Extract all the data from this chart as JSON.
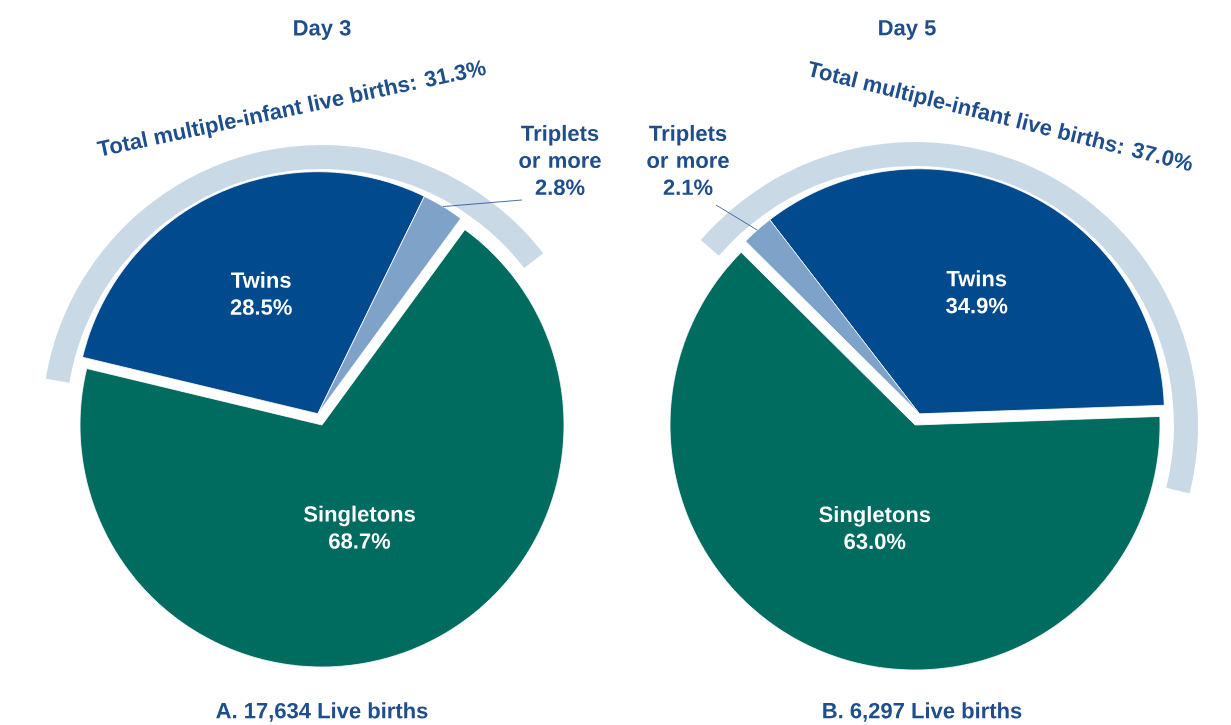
{
  "chart_data": [
    {
      "type": "pie",
      "title": "Day 3",
      "categories": [
        "Singletons",
        "Twins",
        "Triplets or more"
      ],
      "values": [
        68.7,
        28.5,
        2.8
      ],
      "colors": [
        "#006b5f",
        "#004a8d",
        "#7fa3c8"
      ],
      "value_labels": [
        "68.7%",
        "28.5%",
        "2.8%"
      ],
      "annotations": [
        "Total multiple-infant live births: 31.3%",
        "A. 17,634 Live births"
      ]
    },
    {
      "type": "pie",
      "title": "Day 5",
      "categories": [
        "Singletons",
        "Twins",
        "Triplets or more"
      ],
      "values": [
        63.0,
        34.9,
        2.1
      ],
      "colors": [
        "#006b5f",
        "#004a8d",
        "#7fa3c8"
      ],
      "value_labels": [
        "63.0%",
        "34.9%",
        "2.1%"
      ],
      "annotations": [
        "Total multiple-infant live births: 37.0%",
        "B. 6,297 Live births"
      ]
    }
  ]
}
